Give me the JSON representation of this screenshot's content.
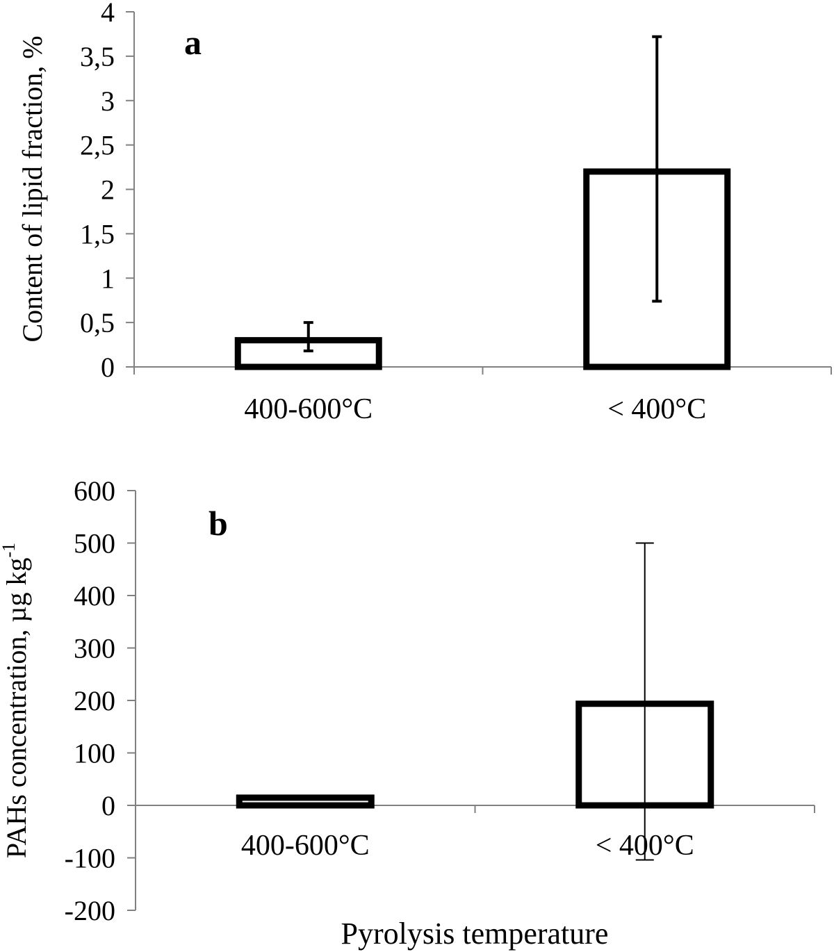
{
  "chart_data": [
    {
      "type": "bar",
      "panel_label": "a",
      "ylabel": "Content of lipid fraction, %",
      "xlabel": "",
      "categories": [
        "400-600°C",
        "< 400°C"
      ],
      "values": [
        0.32,
        2.22
      ],
      "error_low": [
        0.18,
        0.74
      ],
      "error_high": [
        0.5,
        3.72
      ],
      "ylim": [
        0,
        4
      ],
      "yticks": [
        0,
        0.5,
        1,
        1.5,
        2,
        2.5,
        3,
        3.5,
        4
      ],
      "ytick_labels": [
        "0",
        "0,5",
        "1",
        "1,5",
        "2",
        "2,5",
        "3",
        "3,5",
        "4"
      ],
      "grid": false
    },
    {
      "type": "bar",
      "panel_label": "b",
      "ylabel": "PAHs concentration, µg kg",
      "ylabel_superscript": "-1",
      "xlabel": "Pyrolysis temperature",
      "categories": [
        "400-600°C",
        "< 400°C"
      ],
      "values": [
        18,
        197
      ],
      "error_low": [
        18,
        -104
      ],
      "error_high": [
        18,
        500
      ],
      "ylim": [
        -200,
        600
      ],
      "yticks": [
        -200,
        -100,
        0,
        100,
        200,
        300,
        400,
        500,
        600
      ],
      "ytick_labels": [
        "-200",
        "-100",
        "0",
        "100",
        "200",
        "300",
        "400",
        "500",
        "600"
      ],
      "grid": false
    }
  ]
}
